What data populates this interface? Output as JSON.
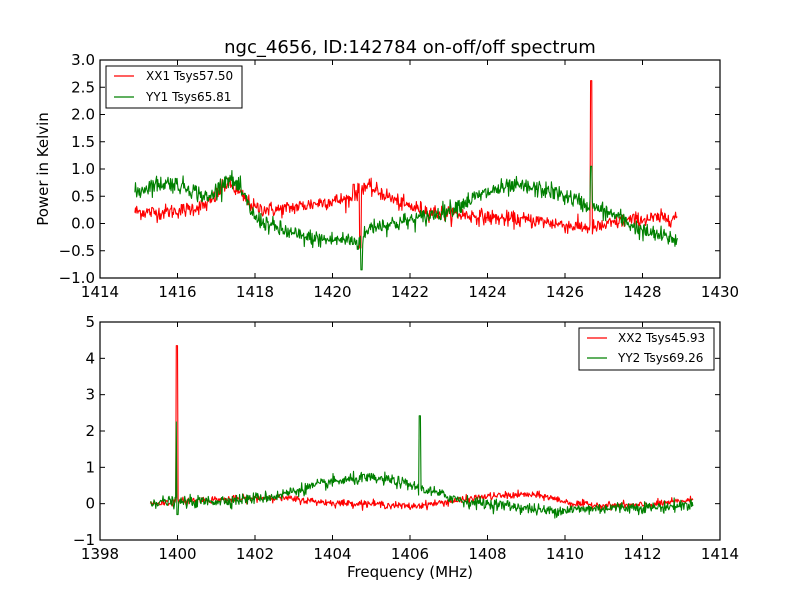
{
  "chart_data": [
    {
      "type": "line",
      "title": "ngc_4656, ID:142784 on-off/off spectrum",
      "xlabel": "",
      "ylabel": "Power in Kelvin",
      "xlim": [
        1414,
        1430
      ],
      "ylim": [
        -1.0,
        3.0
      ],
      "xticks": [
        "1414",
        "1416",
        "1418",
        "1420",
        "1422",
        "1424",
        "1426",
        "1428",
        "1430"
      ],
      "yticks": [
        "−1.0",
        "−0.5",
        "0.0",
        "0.5",
        "1.0",
        "1.5",
        "2.0",
        "2.5",
        "3.0"
      ],
      "xtick_values": [
        1414,
        1416,
        1418,
        1420,
        1422,
        1424,
        1426,
        1428,
        1430
      ],
      "ytick_values": [
        -1.0,
        -0.5,
        0.0,
        0.5,
        1.0,
        1.5,
        2.0,
        2.5,
        3.0
      ],
      "legend_placement": "top-left",
      "grid": false,
      "series": [
        {
          "name": "XX1 Tsys57.50",
          "color": "#ff0000",
          "x_range": [
            1414.9,
            1428.9
          ],
          "noise": 0.07,
          "baseline": [
            [
              1414.9,
              0.22
            ],
            [
              1415.5,
              0.2
            ],
            [
              1416.2,
              0.25
            ],
            [
              1416.8,
              0.35
            ],
            [
              1417.3,
              0.75
            ],
            [
              1417.6,
              0.55
            ],
            [
              1418.0,
              0.28
            ],
            [
              1418.6,
              0.25
            ],
            [
              1419.2,
              0.32
            ],
            [
              1419.8,
              0.4
            ],
            [
              1420.5,
              0.45
            ],
            [
              1420.8,
              0.7
            ],
            [
              1421.3,
              0.55
            ],
            [
              1421.8,
              0.35
            ],
            [
              1422.5,
              0.22
            ],
            [
              1423.5,
              0.15
            ],
            [
              1424.5,
              0.08
            ],
            [
              1425.3,
              0.05
            ],
            [
              1426.2,
              -0.05
            ],
            [
              1426.8,
              -0.08
            ],
            [
              1427.5,
              0.05
            ],
            [
              1428.9,
              0.12
            ]
          ],
          "spikes": [
            [
              1426.68,
              2.62
            ],
            [
              1420.72,
              -0.45
            ],
            [
              1420.55,
              0.72
            ]
          ]
        },
        {
          "name": "YY1 Tsys65.81",
          "color": "#008000",
          "x_range": [
            1414.9,
            1428.9
          ],
          "noise": 0.08,
          "baseline": [
            [
              1414.9,
              0.55
            ],
            [
              1415.3,
              0.7
            ],
            [
              1415.8,
              0.75
            ],
            [
              1416.3,
              0.65
            ],
            [
              1416.8,
              0.45
            ],
            [
              1417.3,
              0.85
            ],
            [
              1417.6,
              0.65
            ],
            [
              1418.0,
              0.1
            ],
            [
              1418.6,
              -0.1
            ],
            [
              1419.2,
              -0.25
            ],
            [
              1419.8,
              -0.3
            ],
            [
              1420.4,
              -0.3
            ],
            [
              1420.7,
              -0.35
            ],
            [
              1421.0,
              -0.05
            ],
            [
              1421.6,
              0.0
            ],
            [
              1422.3,
              0.1
            ],
            [
              1423.0,
              0.25
            ],
            [
              1423.6,
              0.45
            ],
            [
              1424.2,
              0.62
            ],
            [
              1424.8,
              0.68
            ],
            [
              1425.6,
              0.6
            ],
            [
              1426.2,
              0.45
            ],
            [
              1426.7,
              0.3
            ],
            [
              1427.3,
              0.15
            ],
            [
              1428.0,
              -0.15
            ],
            [
              1428.9,
              -0.3
            ]
          ],
          "spikes": [
            [
              1426.68,
              1.05
            ],
            [
              1420.75,
              -0.85
            ]
          ]
        }
      ]
    },
    {
      "type": "line",
      "title": "",
      "xlabel": "Frequency (MHz)",
      "ylabel": "",
      "xlim": [
        1398,
        1414
      ],
      "ylim": [
        -1,
        5
      ],
      "xticks": [
        "1398",
        "1400",
        "1402",
        "1404",
        "1406",
        "1408",
        "1410",
        "1412",
        "1414"
      ],
      "yticks": [
        "−1",
        "0",
        "1",
        "2",
        "3",
        "4",
        "5"
      ],
      "xtick_values": [
        1398,
        1400,
        1402,
        1404,
        1406,
        1408,
        1410,
        1412,
        1414
      ],
      "ytick_values": [
        -1,
        0,
        1,
        2,
        3,
        4,
        5
      ],
      "legend_placement": "top-right",
      "grid": false,
      "series": [
        {
          "name": "XX2 Tsys45.93",
          "color": "#ff0000",
          "x_range": [
            1399.3,
            1413.3
          ],
          "noise": 0.05,
          "baseline": [
            [
              1399.3,
              0.0
            ],
            [
              1400.5,
              0.1
            ],
            [
              1401.5,
              0.12
            ],
            [
              1402.5,
              0.18
            ],
            [
              1403.2,
              0.1
            ],
            [
              1404.0,
              0.02
            ],
            [
              1405.0,
              0.0
            ],
            [
              1406.0,
              -0.08
            ],
            [
              1407.0,
              0.05
            ],
            [
              1408.0,
              0.2
            ],
            [
              1409.0,
              0.25
            ],
            [
              1409.5,
              0.2
            ],
            [
              1410.2,
              0.0
            ],
            [
              1411.0,
              -0.05
            ],
            [
              1412.0,
              -0.05
            ],
            [
              1413.3,
              0.1
            ]
          ],
          "spikes": [
            [
              1399.98,
              4.35
            ]
          ]
        },
        {
          "name": "YY2 Tsys69.26",
          "color": "#008000",
          "x_range": [
            1399.3,
            1413.3
          ],
          "noise": 0.08,
          "baseline": [
            [
              1399.3,
              0.05
            ],
            [
              1400.5,
              0.05
            ],
            [
              1401.5,
              0.1
            ],
            [
              1402.5,
              0.2
            ],
            [
              1403.2,
              0.4
            ],
            [
              1404.0,
              0.6
            ],
            [
              1404.8,
              0.7
            ],
            [
              1405.5,
              0.65
            ],
            [
              1406.2,
              0.45
            ],
            [
              1406.8,
              0.25
            ],
            [
              1407.5,
              0.05
            ],
            [
              1408.5,
              -0.05
            ],
            [
              1409.5,
              -0.2
            ],
            [
              1410.5,
              -0.15
            ],
            [
              1411.5,
              -0.1
            ],
            [
              1412.5,
              -0.1
            ],
            [
              1413.3,
              -0.02
            ]
          ],
          "spikes": [
            [
              1406.25,
              2.42
            ],
            [
              1399.98,
              2.25
            ],
            [
              1400.0,
              -0.3
            ]
          ]
        }
      ]
    }
  ]
}
